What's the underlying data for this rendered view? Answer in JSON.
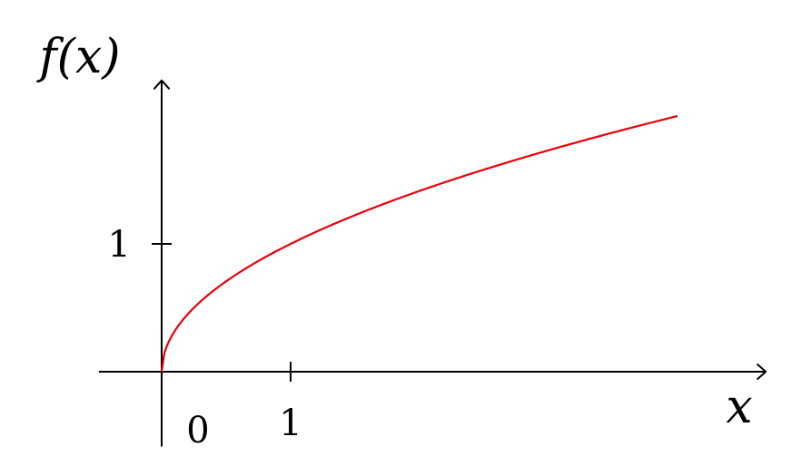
{
  "chart_data": {
    "type": "line",
    "function": "sqrt",
    "title": "",
    "xlabel": "x",
    "ylabel": "f(x)",
    "xlim": [
      -0.5,
      4.6
    ],
    "ylim": [
      -0.5,
      2.3
    ],
    "x_ticks": [
      {
        "value": 1,
        "label": "1"
      }
    ],
    "y_ticks": [
      {
        "value": 1,
        "label": "1"
      }
    ],
    "origin_label": "0",
    "grid": false,
    "series": [
      {
        "color": "#e8000b",
        "x_range": [
          0,
          4
        ],
        "x": [
          0,
          0.05,
          0.1,
          0.25,
          0.5,
          0.75,
          1,
          1.5,
          2,
          2.5,
          3,
          3.5,
          4
        ],
        "y": [
          0,
          0.224,
          0.316,
          0.5,
          0.707,
          0.866,
          1,
          1.225,
          1.414,
          1.581,
          1.732,
          1.871,
          2
        ]
      }
    ]
  }
}
